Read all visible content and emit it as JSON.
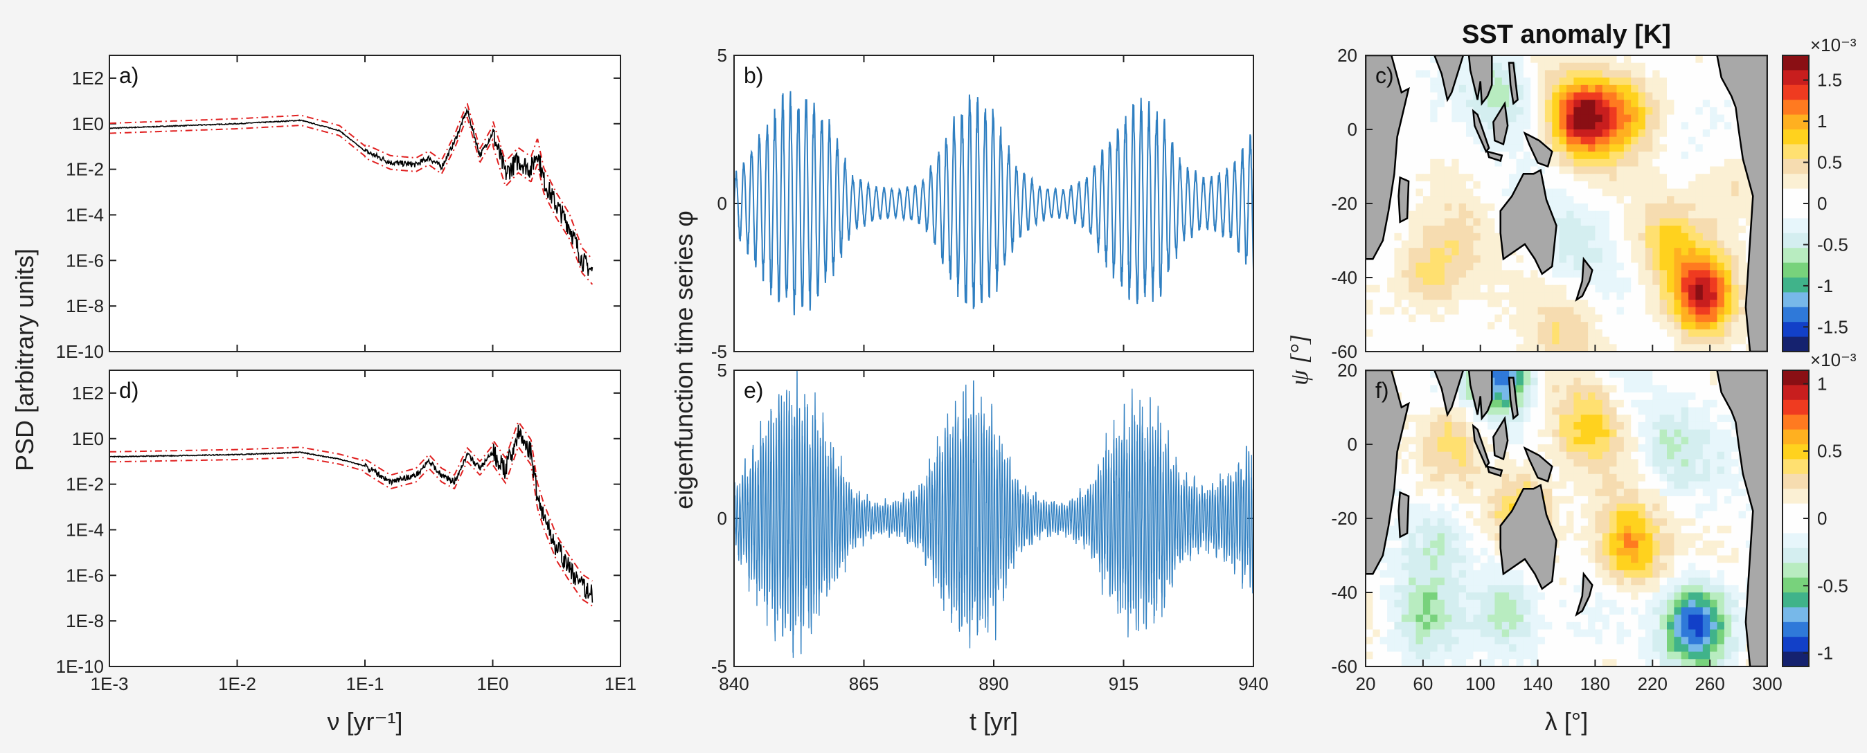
{
  "figure": {
    "colors": {
      "frame": "#222222",
      "psd": "#000000",
      "ci": "#e02020",
      "series": "#2f7fc1",
      "land": "#a8a8a8",
      "ocean": "#ffffff"
    }
  },
  "chart_data": [
    {
      "id": "a",
      "type": "line",
      "panel_label": "a)",
      "scale": "loglog",
      "xlim_exp": [
        -3,
        1
      ],
      "ylim_exp": [
        -10,
        3
      ],
      "yticks": [
        "1E-10",
        "1E-8",
        "1E-6",
        "1E-4",
        "1E-2",
        "1E0",
        "1E2"
      ],
      "xticks": [],
      "series": [
        {
          "name": "PSD",
          "x_exp": [
            -3,
            -2,
            -1.5,
            -1.2,
            -1,
            -0.8,
            -0.6,
            -0.5,
            -0.4,
            -0.3,
            -0.2,
            -0.1,
            0,
            0.1,
            0.2,
            0.3,
            0.35,
            0.4,
            0.5,
            0.6,
            0.7,
            0.78
          ],
          "y_exp": [
            -0.2,
            0,
            0.15,
            -0.3,
            -1.2,
            -1.7,
            -1.8,
            -1.5,
            -1.9,
            -0.8,
            0.6,
            -1.4,
            -0.4,
            -2.2,
            -1.6,
            -2.0,
            -1.2,
            -2.5,
            -3.6,
            -4.5,
            -6.0,
            -6.5
          ]
        }
      ]
    },
    {
      "id": "d",
      "type": "line",
      "panel_label": "d)",
      "scale": "loglog",
      "xlabel": "ν [yr⁻¹]",
      "ylabel": "PSD [arbitrary units]",
      "xlim_exp": [
        -3,
        1
      ],
      "ylim_exp": [
        -10,
        3
      ],
      "yticks": [
        "1E-10",
        "1E-8",
        "1E-6",
        "1E-4",
        "1E-2",
        "1E0",
        "1E2"
      ],
      "xticks": [
        "1E-3",
        "1E-2",
        "1E-1",
        "1E0",
        "1E1"
      ],
      "series": [
        {
          "name": "PSD",
          "x_exp": [
            -3,
            -2,
            -1.5,
            -1.2,
            -1,
            -0.8,
            -0.6,
            -0.5,
            -0.4,
            -0.3,
            -0.2,
            -0.1,
            0,
            0.1,
            0.2,
            0.3,
            0.35,
            0.4,
            0.5,
            0.6,
            0.7,
            0.78
          ],
          "y_exp": [
            -0.8,
            -0.7,
            -0.6,
            -0.9,
            -1.2,
            -1.9,
            -1.6,
            -1.0,
            -1.6,
            -1.9,
            -0.7,
            -1.3,
            -0.6,
            -1.4,
            0.2,
            -0.6,
            -2.5,
            -3.4,
            -4.8,
            -5.7,
            -6.5,
            -6.8
          ]
        }
      ]
    },
    {
      "id": "b",
      "type": "line",
      "panel_label": "b)",
      "xlim": [
        840,
        940
      ],
      "ylim": [
        -5,
        5
      ],
      "yticks": [
        "-5",
        "0",
        "5"
      ],
      "xticks": [],
      "series": [
        {
          "name": "eigenfunction",
          "amp_envelope": [
            1.0,
            2.4,
            3.8,
            3.9,
            3.0,
            1.0,
            0.6,
            0.5,
            0.8,
            2.5,
            4.0,
            3.3,
            1.3,
            0.6,
            0.5,
            1.0,
            2.6,
            3.7,
            3.4,
            1.4,
            0.9,
            1.3,
            2.6
          ],
          "period_yr": 1.5
        }
      ]
    },
    {
      "id": "e",
      "type": "line",
      "panel_label": "e)",
      "xlabel": "t [yr]",
      "ylabel": "eigenfunction time series φ",
      "xlim": [
        840,
        940
      ],
      "ylim": [
        -5,
        5
      ],
      "yticks": [
        "-5",
        "0",
        "5"
      ],
      "xticks": [
        "840",
        "865",
        "890",
        "915",
        "940"
      ],
      "series": [
        {
          "name": "eigenfunction",
          "amp_envelope": [
            1.0,
            2.6,
            4.2,
            4.0,
            2.6,
            1.0,
            0.5,
            0.6,
            1.2,
            3.2,
            4.2,
            3.3,
            1.2,
            0.6,
            0.5,
            1.0,
            2.8,
            3.7,
            3.2,
            1.4,
            1.0,
            1.5,
            2.5
          ],
          "period_yr": 0.5
        }
      ]
    },
    {
      "id": "c",
      "type": "heatmap",
      "panel_label": "c)",
      "title": "SST anomaly [K]",
      "xlim": [
        20,
        300
      ],
      "ylim": [
        -60,
        20
      ],
      "yticks": [
        "20",
        "0",
        "-20",
        "-40",
        "-60"
      ],
      "xticks": [],
      "colorbar": {
        "exponent": "×10⁻³",
        "ticks": [
          "1.5",
          "1",
          "0.5",
          "0",
          "-0.5",
          "-1",
          "-1.5"
        ]
      },
      "anomalies": [
        {
          "lon": 170,
          "lat": 3,
          "value": 1.7
        },
        {
          "lon": 200,
          "lat": 5,
          "value": 0.9
        },
        {
          "lon": 255,
          "lat": -45,
          "value": 1.6
        },
        {
          "lon": 230,
          "lat": -30,
          "value": 0.7
        },
        {
          "lon": 65,
          "lat": -40,
          "value": 0.6
        },
        {
          "lon": 90,
          "lat": -30,
          "value": 0.3
        },
        {
          "lon": 275,
          "lat": -15,
          "value": 0.3
        },
        {
          "lon": 115,
          "lat": 10,
          "value": -0.6
        },
        {
          "lon": 165,
          "lat": -30,
          "value": -0.4
        },
        {
          "lon": 160,
          "lat": -55,
          "value": 0.5
        }
      ]
    },
    {
      "id": "f",
      "type": "heatmap",
      "panel_label": "f)",
      "xlabel": "λ [°]",
      "ylabel": "ψ [°]",
      "xlim": [
        20,
        300
      ],
      "ylim": [
        -60,
        20
      ],
      "yticks": [
        "20",
        "0",
        "-20",
        "-40",
        "-60"
      ],
      "xticks": [
        "20",
        "60",
        "100",
        "140",
        "180",
        "220",
        "260",
        "300"
      ],
      "colorbar": {
        "exponent": "×10⁻³",
        "ticks": [
          "1",
          "0.5",
          "0",
          "-0.5",
          "-1"
        ]
      },
      "anomalies": [
        {
          "lon": 250,
          "lat": -48,
          "value": -1.0
        },
        {
          "lon": 115,
          "lat": 18,
          "value": -0.9
        },
        {
          "lon": 205,
          "lat": -28,
          "value": 0.7
        },
        {
          "lon": 130,
          "lat": -18,
          "value": 0.6
        },
        {
          "lon": 175,
          "lat": 5,
          "value": 0.5
        },
        {
          "lon": 80,
          "lat": 2,
          "value": 0.4
        },
        {
          "lon": 70,
          "lat": -25,
          "value": -0.4
        },
        {
          "lon": 120,
          "lat": -45,
          "value": -0.5
        },
        {
          "lon": 230,
          "lat": 0,
          "value": -0.3
        },
        {
          "lon": 60,
          "lat": -45,
          "value": -0.3
        }
      ]
    }
  ]
}
